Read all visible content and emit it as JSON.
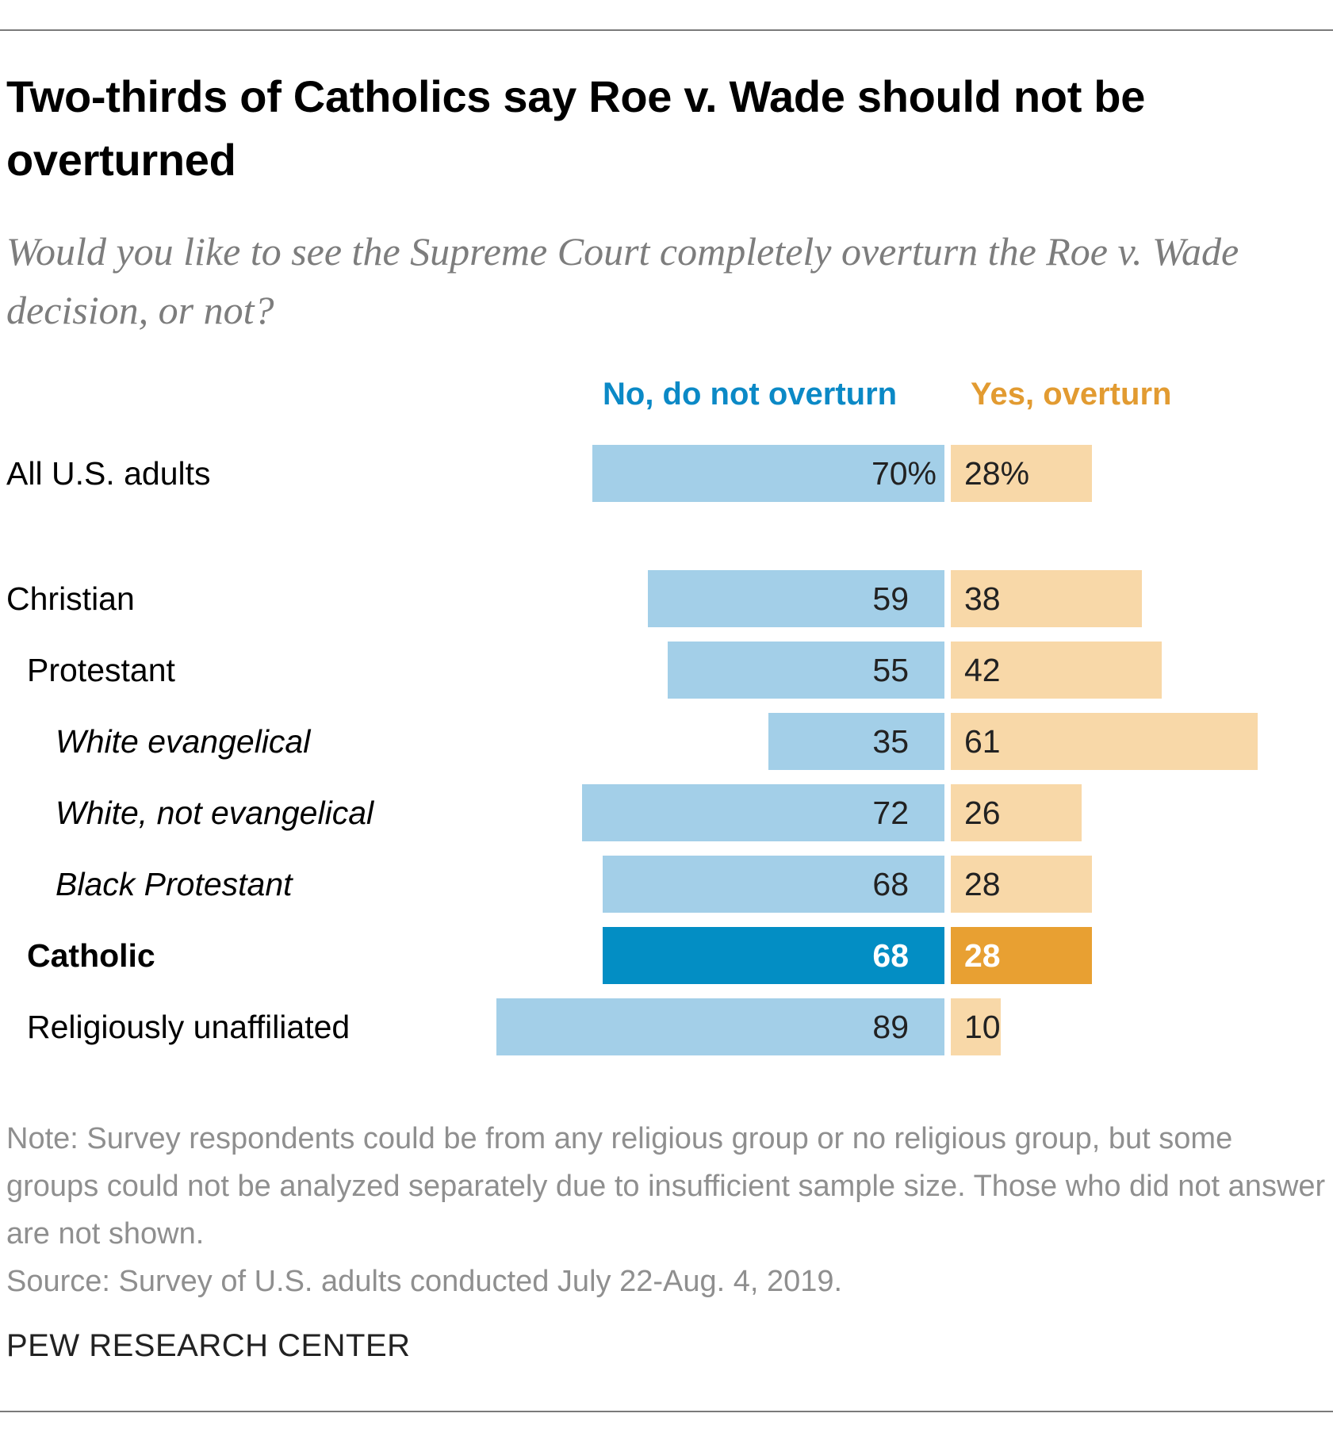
{
  "chart_data": {
    "type": "bar",
    "orientation": "diverging-horizontal",
    "title": "Two-thirds of Catholics say Roe v. Wade should not be overturned",
    "subtitle": "Would you like to see the Supreme Court completely overturn the Roe v. Wade decision, or not?",
    "series": [
      {
        "name": "No, do not overturn",
        "color": "#a3cfe8",
        "highlight_color": "#038ec4",
        "values": [
          70,
          59,
          55,
          35,
          72,
          68,
          68,
          89
        ]
      },
      {
        "name": "Yes, overturn",
        "color": "#f8d8a8",
        "highlight_color": "#e8a032",
        "values": [
          28,
          38,
          42,
          61,
          26,
          28,
          28,
          10
        ]
      }
    ],
    "categories": [
      "All U.S. adults",
      "Christian",
      "Protestant",
      "White evangelical",
      "White, not evangelical",
      "Black Protestant",
      "Catholic",
      "Religiously unaffiliated"
    ],
    "rows": [
      {
        "label": "All U.S. adults",
        "no_label": "70%",
        "yes_label": "28%",
        "style": "normal",
        "indent": 0,
        "highlight": false
      },
      {
        "label": "Christian",
        "no_label": "59",
        "yes_label": "38",
        "style": "normal",
        "indent": 0,
        "highlight": false
      },
      {
        "label": "Protestant",
        "no_label": "55",
        "yes_label": "42",
        "style": "normal",
        "indent": 1,
        "highlight": false
      },
      {
        "label": "White evangelical",
        "no_label": "35",
        "yes_label": "61",
        "style": "italic",
        "indent": 2,
        "highlight": false
      },
      {
        "label": "White, not evangelical",
        "no_label": "72",
        "yes_label": "26",
        "style": "italic",
        "indent": 2,
        "highlight": false
      },
      {
        "label": "Black Protestant",
        "no_label": "68",
        "yes_label": "28",
        "style": "italic",
        "indent": 2,
        "highlight": false
      },
      {
        "label": "Catholic",
        "no_label": "68",
        "yes_label": "28",
        "style": "bold",
        "indent": 1,
        "highlight": true
      },
      {
        "label": "Religiously unaffiliated",
        "no_label": "89",
        "yes_label": "10",
        "style": "normal",
        "indent": 1,
        "highlight": false
      }
    ],
    "unit": "%",
    "grid": false,
    "legend_position": "top"
  },
  "note": "Note: Survey respondents could be from any religious group or no religious group, but some groups could not be analyzed separately due to insufficient sample size. Those who did not answer are not shown.",
  "source": "Source: Survey of U.S. adults conducted July 22-Aug. 4, 2019.",
  "brand": "PEW RESEARCH CENTER"
}
